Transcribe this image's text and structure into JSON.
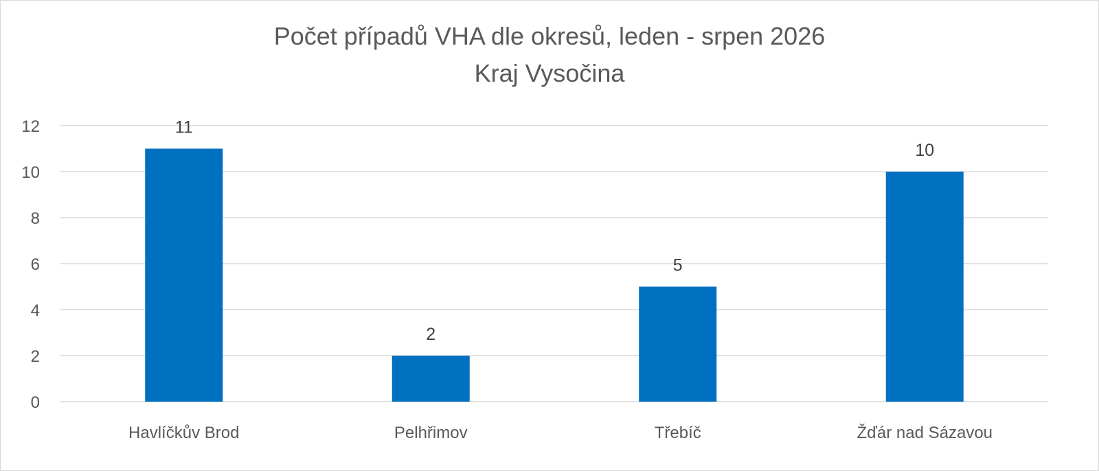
{
  "chart_data": {
    "type": "bar",
    "title": "Počet případů VHA dle okresů, leden - srpen 2026",
    "subtitle": "Kraj Vysočina",
    "categories": [
      "Havlíčkův Brod",
      "Pelhřimov",
      "Třebíč",
      "Žďár nad Sázavou"
    ],
    "values": [
      11,
      2,
      5,
      10
    ],
    "data_labels": [
      "11",
      "2",
      "5",
      "10"
    ],
    "yticks": [
      0,
      2,
      4,
      6,
      8,
      10,
      12
    ],
    "ylim": [
      0,
      12
    ],
    "xlabel": "",
    "ylabel": "",
    "grid": true,
    "legend": "none",
    "colors": {
      "bar": "#0070c0",
      "grid": "#d9d9d9"
    }
  }
}
